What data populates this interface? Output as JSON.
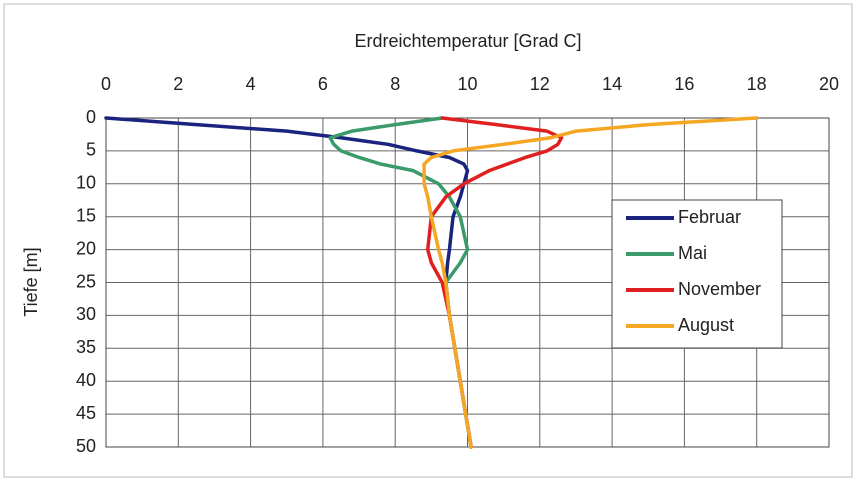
{
  "chart_data": {
    "type": "line",
    "x_label": "Erdreichtemperatur [Grad C]",
    "y_label": "Tiefe [m]",
    "y": [
      0,
      1,
      2,
      3,
      4,
      5,
      6,
      7,
      8,
      10,
      12,
      15,
      20,
      22,
      25,
      30,
      40,
      50
    ],
    "series": [
      {
        "name": "Februar",
        "color": "#1a237e",
        "values": [
          0,
          2.5,
          5.0,
          6.5,
          7.8,
          8.6,
          9.5,
          9.9,
          10.0,
          9.9,
          9.8,
          9.6,
          9.5,
          9.45,
          9.4,
          9.5,
          9.8,
          10.1
        ]
      },
      {
        "name": "Mai",
        "color": "#3a9a6a",
        "values": [
          9.3,
          8.0,
          6.8,
          6.2,
          6.3,
          6.5,
          7.0,
          7.6,
          8.5,
          9.2,
          9.5,
          9.8,
          10.0,
          9.8,
          9.4,
          9.5,
          9.8,
          10.1
        ]
      },
      {
        "name": "November",
        "color": "#e02020",
        "values": [
          9.3,
          10.8,
          12.2,
          12.6,
          12.5,
          12.2,
          11.6,
          11.1,
          10.6,
          9.9,
          9.4,
          9.0,
          8.9,
          9.0,
          9.3,
          9.5,
          9.8,
          10.1
        ]
      },
      {
        "name": "August",
        "color": "#f5a623",
        "values": [
          18.0,
          15.0,
          13.0,
          12.3,
          11.0,
          9.6,
          9.0,
          8.8,
          8.8,
          8.8,
          8.9,
          9.0,
          9.2,
          9.3,
          9.4,
          9.5,
          9.8,
          10.1
        ]
      }
    ],
    "xlim": [
      0,
      20
    ],
    "xticks": [
      0,
      2,
      4,
      6,
      8,
      10,
      12,
      14,
      16,
      18,
      20
    ],
    "ylim": [
      0,
      50
    ],
    "yticks": [
      0,
      5,
      10,
      15,
      20,
      25,
      30,
      35,
      40,
      45,
      50
    ],
    "y_inverted": true,
    "x_axis_position": "top",
    "grid": true,
    "legend": "right"
  }
}
